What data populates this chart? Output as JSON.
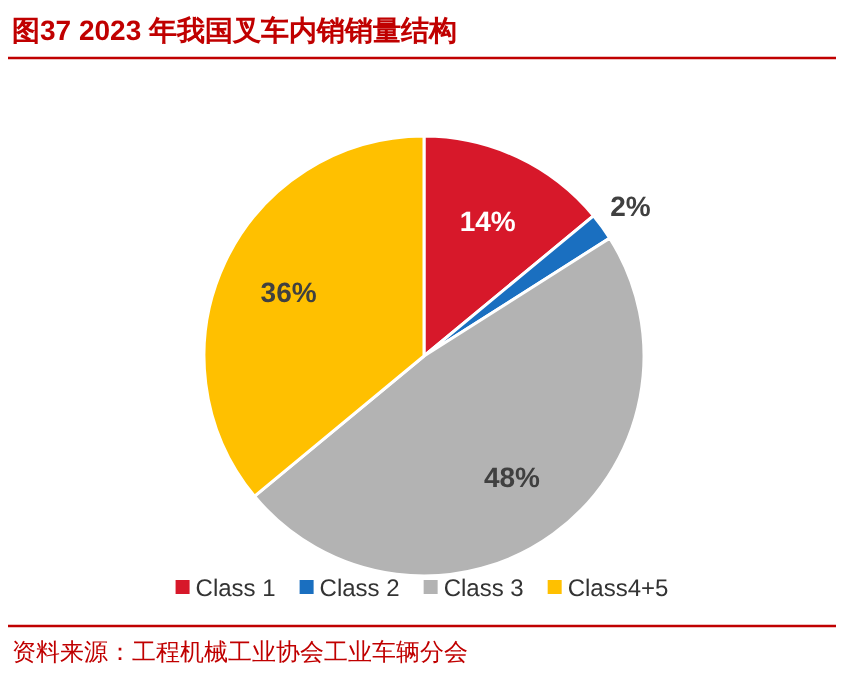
{
  "chart_data": {
    "type": "pie",
    "title": "图37  2023 年我国叉车内销销量结构",
    "categories": [
      "Class 1",
      "Class 2",
      "Class 3",
      "Class4+5"
    ],
    "values": [
      14,
      2,
      48,
      36
    ],
    "colors": [
      "#d7182a",
      "#1a6fc0",
      "#b3b3b3",
      "#ffc000"
    ],
    "value_labels": [
      "14%",
      "2%",
      "48%",
      "36%"
    ],
    "legend": "bottom",
    "annotations": [
      "资料来源：工程机械工业协会工业车辆分会"
    ]
  }
}
